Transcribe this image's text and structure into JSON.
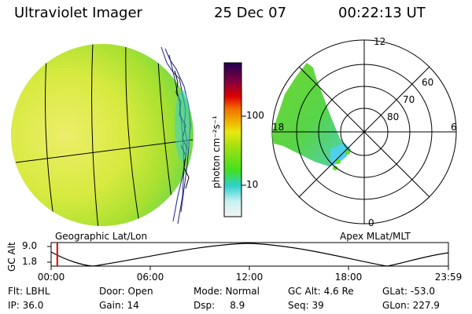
{
  "header": {
    "title": "Ultraviolet Imager",
    "date": "25 Dec 07",
    "time": "00:22:13 UT"
  },
  "colorbar": {
    "label": "photon cm⁻²s⁻¹",
    "ticks": [
      "100",
      "10"
    ],
    "scale": "log",
    "colors": [
      "#e8f4f4",
      "#30d0d0",
      "#40e020",
      "#a0e010",
      "#e8e810",
      "#f0b000",
      "#f07000",
      "#e00000",
      "#800040",
      "#200050"
    ]
  },
  "left_panel": {
    "caption": "Geographic Lat/Lon"
  },
  "right_panel": {
    "caption": "Apex MLat/MLT",
    "mlt_labels": {
      "top": "12",
      "left": "18",
      "right": "6",
      "bottom": "0"
    },
    "lat_labels": [
      "60",
      "70",
      "80"
    ]
  },
  "timeline": {
    "ylabel": "GC Alt",
    "yticks": [
      "9.0",
      "1.8"
    ],
    "xticks": [
      "00:00",
      "06:00",
      "12:00",
      "18:00",
      "23:59"
    ],
    "marker_hours": 0.37
  },
  "info": {
    "flt": "Flt: LBHL",
    "ip": "IP: 36.0",
    "door": "Door: Open",
    "gain": "Gain: 14",
    "mode": "Mode: Normal",
    "dsp": "Dsp:     8.9",
    "gc_alt": "GC Alt: 4.6 Re",
    "seq": "Seq: 39",
    "glat": "GLat: -53.0",
    "glon": "GLon: 227.9"
  }
}
